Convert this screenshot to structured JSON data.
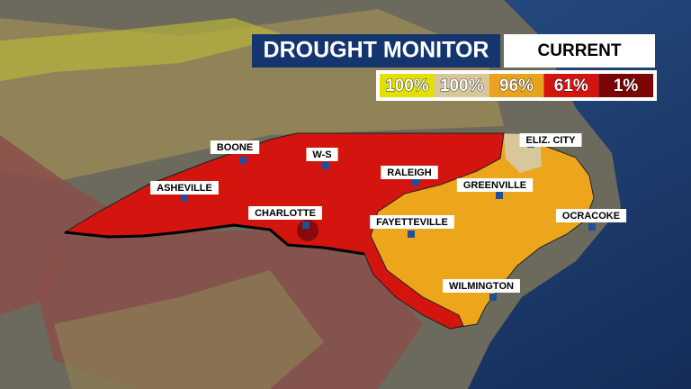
{
  "header": {
    "title": "DROUGHT MONITOR",
    "period": "CURRENT"
  },
  "legend": [
    {
      "label": "100%",
      "color": "#e2e000"
    },
    {
      "label": "100%",
      "color": "#d9c79c"
    },
    {
      "label": "96%",
      "color": "#e8a21e"
    },
    {
      "label": "61%",
      "color": "#d4140f"
    },
    {
      "label": "1%",
      "color": "#7c0606"
    }
  ],
  "cities": [
    "BOONE",
    "W-S",
    "RALEIGH",
    "ASHEVILLE",
    "ELIZ. CITY",
    "GREENVILLE",
    "CHARLOTTE",
    "FAYETTEVILLE",
    "OCRACOKE",
    "WILMINGTON"
  ]
}
